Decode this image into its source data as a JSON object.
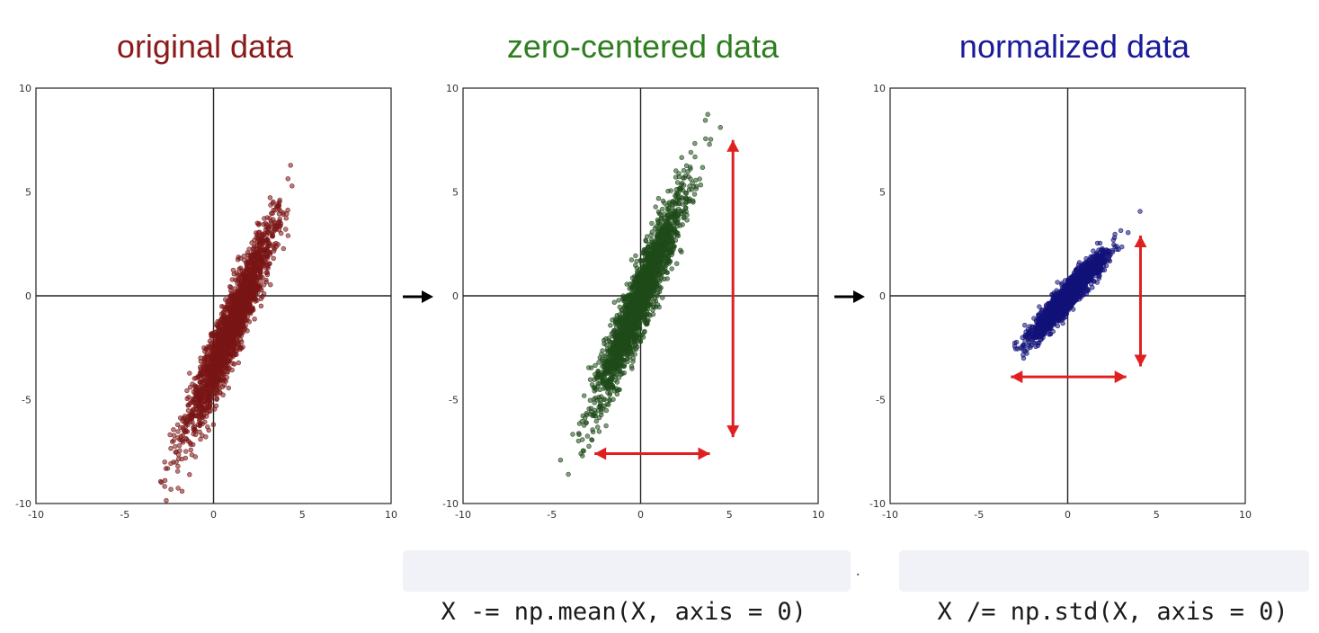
{
  "chart_data": [
    {
      "type": "scatter",
      "title": "original data",
      "title_color": "#8b1a1a",
      "point_color": "#7a1515",
      "xlim": [
        -10,
        10
      ],
      "ylim": [
        -10,
        10
      ],
      "x_ticks": [
        "-10",
        "-5",
        "0",
        "5",
        "10"
      ],
      "y_ticks": [
        "10",
        "5",
        "0",
        "-5",
        "-10"
      ],
      "grid": false,
      "cloud": {
        "mean_x": 1.0,
        "mean_y": -1.5,
        "std_x": 1.25,
        "std_y": 2.55,
        "corr": 0.94,
        "n": 2000
      },
      "range_arrows": []
    },
    {
      "type": "scatter",
      "title": "zero-centered data",
      "title_color": "#2e7d1f",
      "point_color": "#1f4a1a",
      "xlim": [
        -10,
        10
      ],
      "ylim": [
        -10,
        10
      ],
      "x_ticks": [
        "-10",
        "-5",
        "0",
        "5",
        "10"
      ],
      "y_ticks": [
        "10",
        "5",
        "0",
        "-5",
        "-10"
      ],
      "grid": false,
      "cloud": {
        "mean_x": 0.0,
        "mean_y": 0.0,
        "std_x": 1.25,
        "std_y": 2.55,
        "corr": 0.94,
        "n": 2000
      },
      "range_arrows": [
        {
          "orientation": "vertical",
          "at": 5.2,
          "from": -6.8,
          "to": 7.5
        },
        {
          "orientation": "horizontal",
          "at": -7.6,
          "from": -2.6,
          "to": 3.9
        }
      ]
    },
    {
      "type": "scatter",
      "title": "normalized data",
      "title_color": "#1a1a9a",
      "point_color": "#12127a",
      "xlim": [
        -10,
        10
      ],
      "ylim": [
        -10,
        10
      ],
      "x_ticks": [
        "-10",
        "-5",
        "0",
        "5",
        "10"
      ],
      "y_ticks": [
        "10",
        "5",
        "0",
        "-5",
        "-10"
      ],
      "grid": false,
      "cloud": {
        "mean_x": 0.0,
        "mean_y": 0.0,
        "std_x": 1.0,
        "std_y": 1.0,
        "corr": 0.94,
        "n": 2000
      },
      "range_arrows": [
        {
          "orientation": "vertical",
          "at": 4.1,
          "from": -3.4,
          "to": 2.9
        },
        {
          "orientation": "horizontal",
          "at": -3.9,
          "from": -3.2,
          "to": 3.3
        }
      ]
    }
  ],
  "transition_arrows": [
    "→",
    "→"
  ],
  "code": {
    "center": "X -= np.mean(X, axis = 0)",
    "normalize": "X /= np.std(X, axis = 0)"
  },
  "colors": {
    "range_arrow": "#e02020",
    "axis": "#222222"
  }
}
